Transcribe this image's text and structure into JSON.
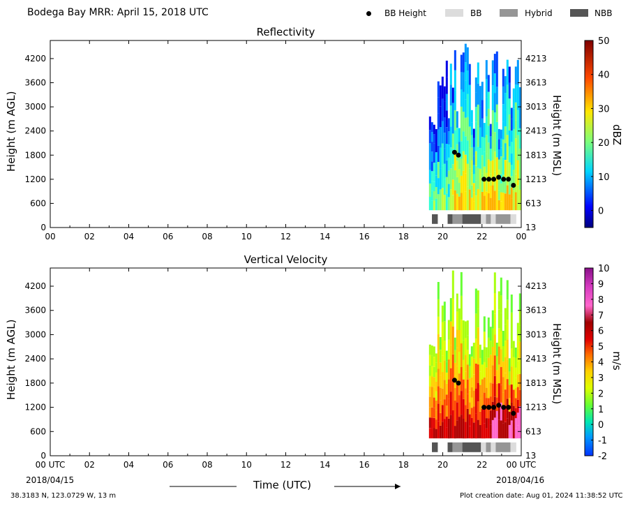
{
  "figure": {
    "title": "Bodega Bay MRR:  April 15, 2018 UTC",
    "footer_left": "38.3183 N, 123.0729 W, 13 m",
    "footer_right": "Plot creation date: Aug 01, 2024 11:38:52 UTC",
    "xlabel": "Time (UTC)",
    "date_start": "2018/04/15",
    "date_end": "2018/04/16",
    "xtick_first": "00 UTC",
    "xtick_last": "00 UTC"
  },
  "legend": [
    {
      "label": "BB Height",
      "type": "dot",
      "color": "#000000"
    },
    {
      "label": "BB",
      "type": "patch",
      "color": "#dcdcdc"
    },
    {
      "label": "Hybrid",
      "type": "patch",
      "color": "#969696"
    },
    {
      "label": "NBB",
      "type": "patch",
      "color": "#555555"
    }
  ],
  "chart_data": [
    {
      "type": "heatmap",
      "title": "Reflectivity",
      "ylabel": "Height (m AGL)",
      "ylabel_right": "Height (m MSL)",
      "xlim": [
        0,
        24
      ],
      "ylim": [
        0,
        4650
      ],
      "x_ticks": [
        "00",
        "02",
        "04",
        "06",
        "08",
        "10",
        "12",
        "14",
        "16",
        "18",
        "20",
        "22",
        "00"
      ],
      "y_ticks": [
        0,
        600,
        1200,
        1800,
        2400,
        3000,
        3600,
        4200
      ],
      "y_ticks_right": [
        13,
        613,
        1213,
        1813,
        2413,
        3013,
        3613,
        4213
      ],
      "colorbar": {
        "label": "dBZ",
        "range": [
          -5,
          50
        ],
        "ticks": [
          0,
          10,
          20,
          30,
          40,
          50
        ]
      },
      "data_coverage_hours": [
        19.3,
        24.0
      ],
      "bb_height": [
        {
          "x": 20.6,
          "y": 1870
        },
        {
          "x": 20.8,
          "y": 1800
        },
        {
          "x": 22.1,
          "y": 1200
        },
        {
          "x": 22.35,
          "y": 1200
        },
        {
          "x": 22.6,
          "y": 1200
        },
        {
          "x": 22.85,
          "y": 1250
        },
        {
          "x": 23.1,
          "y": 1200
        },
        {
          "x": 23.35,
          "y": 1200
        },
        {
          "x": 23.6,
          "y": 1050
        }
      ],
      "bb_type_segments": [
        {
          "start": 19.45,
          "end": 19.75,
          "kind": "NBB"
        },
        {
          "start": 20.25,
          "end": 20.5,
          "kind": "NBB"
        },
        {
          "start": 20.5,
          "end": 21.0,
          "kind": "Hybrid"
        },
        {
          "start": 21.0,
          "end": 21.95,
          "kind": "NBB"
        },
        {
          "start": 21.95,
          "end": 22.2,
          "kind": "BB"
        },
        {
          "start": 22.2,
          "end": 22.45,
          "kind": "Hybrid"
        },
        {
          "start": 22.45,
          "end": 22.7,
          "kind": "BB"
        },
        {
          "start": 22.7,
          "end": 23.45,
          "kind": "Hybrid"
        },
        {
          "start": 23.45,
          "end": 23.75,
          "kind": "BB"
        }
      ]
    },
    {
      "type": "heatmap",
      "title": "Vertical Velocity",
      "ylabel": "Height (m AGL)",
      "ylabel_right": "Height (m MSL)",
      "xlim": [
        0,
        24
      ],
      "ylim": [
        0,
        4650
      ],
      "x_ticks": [
        "00 UTC",
        "02",
        "04",
        "06",
        "08",
        "10",
        "12",
        "14",
        "16",
        "18",
        "20",
        "22",
        "00 UTC"
      ],
      "y_ticks": [
        0,
        600,
        1200,
        1800,
        2400,
        3000,
        3600,
        4200
      ],
      "y_ticks_right": [
        13,
        613,
        1213,
        1813,
        2413,
        3013,
        3613,
        4213
      ],
      "colorbar": {
        "label": "m/s",
        "range": [
          -2,
          10
        ],
        "ticks": [
          -2,
          -1,
          0,
          1,
          2,
          3,
          4,
          5,
          6,
          7,
          8,
          9,
          10
        ]
      },
      "data_coverage_hours": [
        19.3,
        24.0
      ],
      "bb_height": [
        {
          "x": 20.6,
          "y": 1870
        },
        {
          "x": 20.8,
          "y": 1800
        },
        {
          "x": 22.1,
          "y": 1200
        },
        {
          "x": 22.35,
          "y": 1200
        },
        {
          "x": 22.6,
          "y": 1200
        },
        {
          "x": 22.85,
          "y": 1250
        },
        {
          "x": 23.1,
          "y": 1200
        },
        {
          "x": 23.35,
          "y": 1200
        },
        {
          "x": 23.6,
          "y": 1050
        }
      ],
      "bb_type_segments": [
        {
          "start": 19.45,
          "end": 19.75,
          "kind": "NBB"
        },
        {
          "start": 20.25,
          "end": 20.5,
          "kind": "NBB"
        },
        {
          "start": 20.5,
          "end": 21.0,
          "kind": "Hybrid"
        },
        {
          "start": 21.0,
          "end": 21.95,
          "kind": "NBB"
        },
        {
          "start": 21.95,
          "end": 22.2,
          "kind": "BB"
        },
        {
          "start": 22.2,
          "end": 22.45,
          "kind": "Hybrid"
        },
        {
          "start": 22.45,
          "end": 22.7,
          "kind": "BB"
        },
        {
          "start": 22.7,
          "end": 23.45,
          "kind": "Hybrid"
        },
        {
          "start": 23.45,
          "end": 23.75,
          "kind": "BB"
        }
      ]
    }
  ]
}
